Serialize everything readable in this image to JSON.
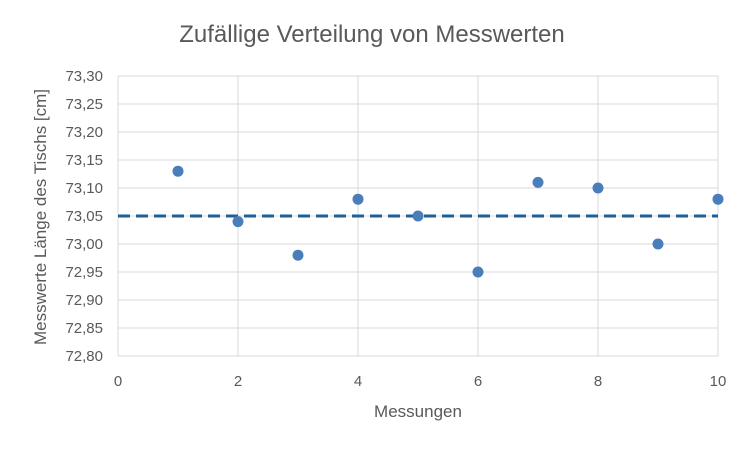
{
  "chart_data": {
    "type": "scatter",
    "title": "Zufällige Verteilung von Messwerten",
    "xlabel": "Messungen",
    "ylabel": "Messwerte Länge des Tischs [cm]",
    "xlim": [
      0,
      10
    ],
    "ylim": [
      72.8,
      73.3
    ],
    "x_ticks": [
      "0",
      "2",
      "4",
      "6",
      "8",
      "10"
    ],
    "y_ticks": [
      "72,80",
      "72,85",
      "72,90",
      "72,95",
      "73,00",
      "73,05",
      "73,10",
      "73,15",
      "73,20",
      "73,25",
      "73,30"
    ],
    "grid": true,
    "series": [
      {
        "x": [
          1,
          2,
          3,
          4,
          5,
          6,
          7,
          8,
          9,
          10
        ],
        "y": [
          73.13,
          73.04,
          72.98,
          73.08,
          73.05,
          72.95,
          73.11,
          73.1,
          73.0,
          73.08
        ],
        "color": "#4a7ebb"
      }
    ],
    "reference_line": {
      "y": 73.05,
      "style": "dashed",
      "color": "#1f5f9a"
    }
  }
}
